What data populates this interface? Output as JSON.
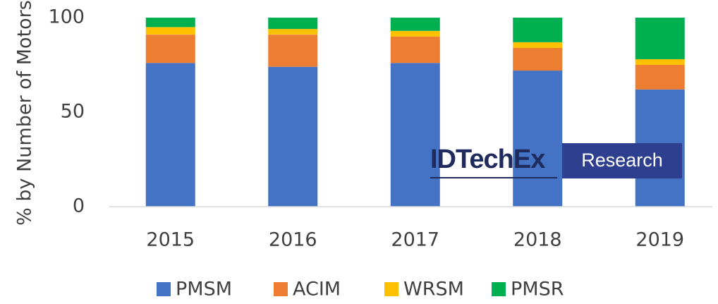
{
  "chart_data": {
    "type": "stacked_bar",
    "y_label": "% by Number of Motors",
    "categories": [
      "2015",
      "2016",
      "2017",
      "2018",
      "2019"
    ],
    "series": [
      {
        "name": "PMSM",
        "color": "#4472c4",
        "values": [
          76,
          74,
          76,
          72,
          62
        ]
      },
      {
        "name": "ACIM",
        "color": "#ed7d31",
        "values": [
          15,
          17,
          14,
          12,
          13
        ]
      },
      {
        "name": "WRSM",
        "color": "#ffc000",
        "values": [
          4,
          3,
          3,
          3,
          3
        ]
      },
      {
        "name": "PMSR",
        "color": "#00b050",
        "values": [
          5,
          6,
          7,
          13,
          22
        ]
      }
    ],
    "ylim": [
      0,
      100
    ],
    "yticks": [
      0,
      50,
      100
    ],
    "grid": false,
    "legend": "bottom"
  },
  "watermark": {
    "brand": "IDTechEx",
    "label": "Research"
  }
}
